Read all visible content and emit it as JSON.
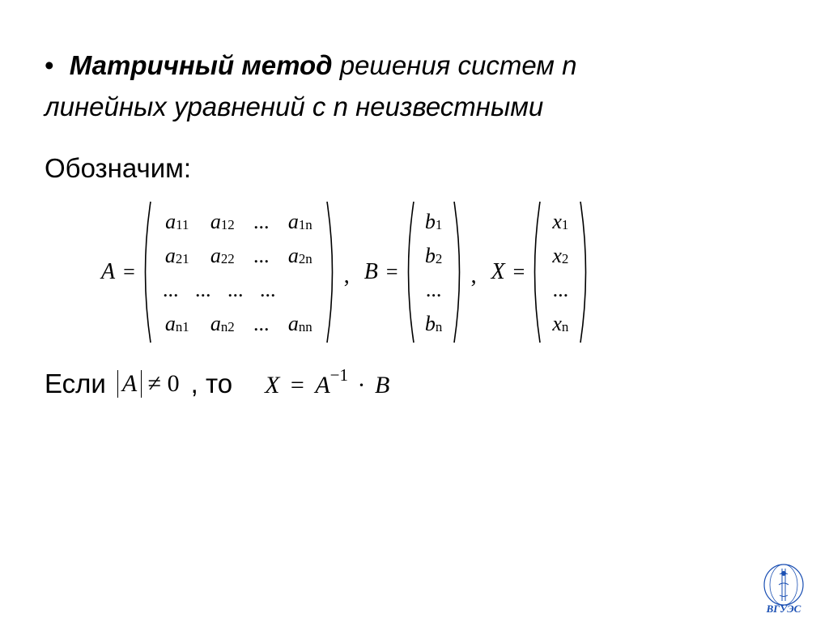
{
  "heading": {
    "bullet": "•",
    "bold": "Матричный метод",
    "rest1": " решения систем n",
    "line2": "линейных уравнений с n неизвестными"
  },
  "label_denote": "Обозначим:",
  "matrixA": {
    "name": "A",
    "eq": "=",
    "rows": [
      [
        {
          "base": "a",
          "sub": "11"
        },
        {
          "base": "a",
          "sub": "12"
        },
        {
          "base": "...",
          "sub": ""
        },
        {
          "base": "a",
          "sub": "1n"
        }
      ],
      [
        {
          "base": "a",
          "sub": "21"
        },
        {
          "base": "a",
          "sub": "22"
        },
        {
          "base": "...",
          "sub": ""
        },
        {
          "base": "a",
          "sub": "2n"
        }
      ],
      [
        {
          "base": "...",
          "sub": ""
        },
        {
          "base": "...",
          "sub": ""
        },
        {
          "base": "...",
          "sub": ""
        },
        {
          "base": "...",
          "sub": ""
        }
      ],
      [
        {
          "base": "a",
          "sub": "n1"
        },
        {
          "base": "a",
          "sub": "n2"
        },
        {
          "base": "...",
          "sub": ""
        },
        {
          "base": "a",
          "sub": "nn"
        }
      ]
    ]
  },
  "vectorB": {
    "name": "B",
    "eq": "=",
    "rows": [
      {
        "base": "b",
        "sub": "1"
      },
      {
        "base": "b",
        "sub": "2"
      },
      {
        "base": "...",
        "sub": ""
      },
      {
        "base": "b",
        "sub": "n"
      }
    ]
  },
  "vectorX": {
    "name": "X",
    "eq": "=",
    "rows": [
      {
        "base": "x",
        "sub": "1"
      },
      {
        "base": "x",
        "sub": "2"
      },
      {
        "base": "...",
        "sub": ""
      },
      {
        "base": "x",
        "sub": "n"
      }
    ]
  },
  "sep_comma": ",",
  "cond": {
    "if": "Если",
    "detA": "A",
    "neq": "≠",
    "zero": "0",
    "then": ", то",
    "lhs": "X",
    "eq": "=",
    "rhsA": "A",
    "rhsExp": "−1",
    "dot": "·",
    "rhsB": "B"
  },
  "logo": {
    "text": "ВГУЭС",
    "stroke": "#1a4fb3"
  },
  "style": {
    "fontColor": "#000000",
    "bg": "#ffffff",
    "headingSize": 33,
    "mathSize": 26
  }
}
